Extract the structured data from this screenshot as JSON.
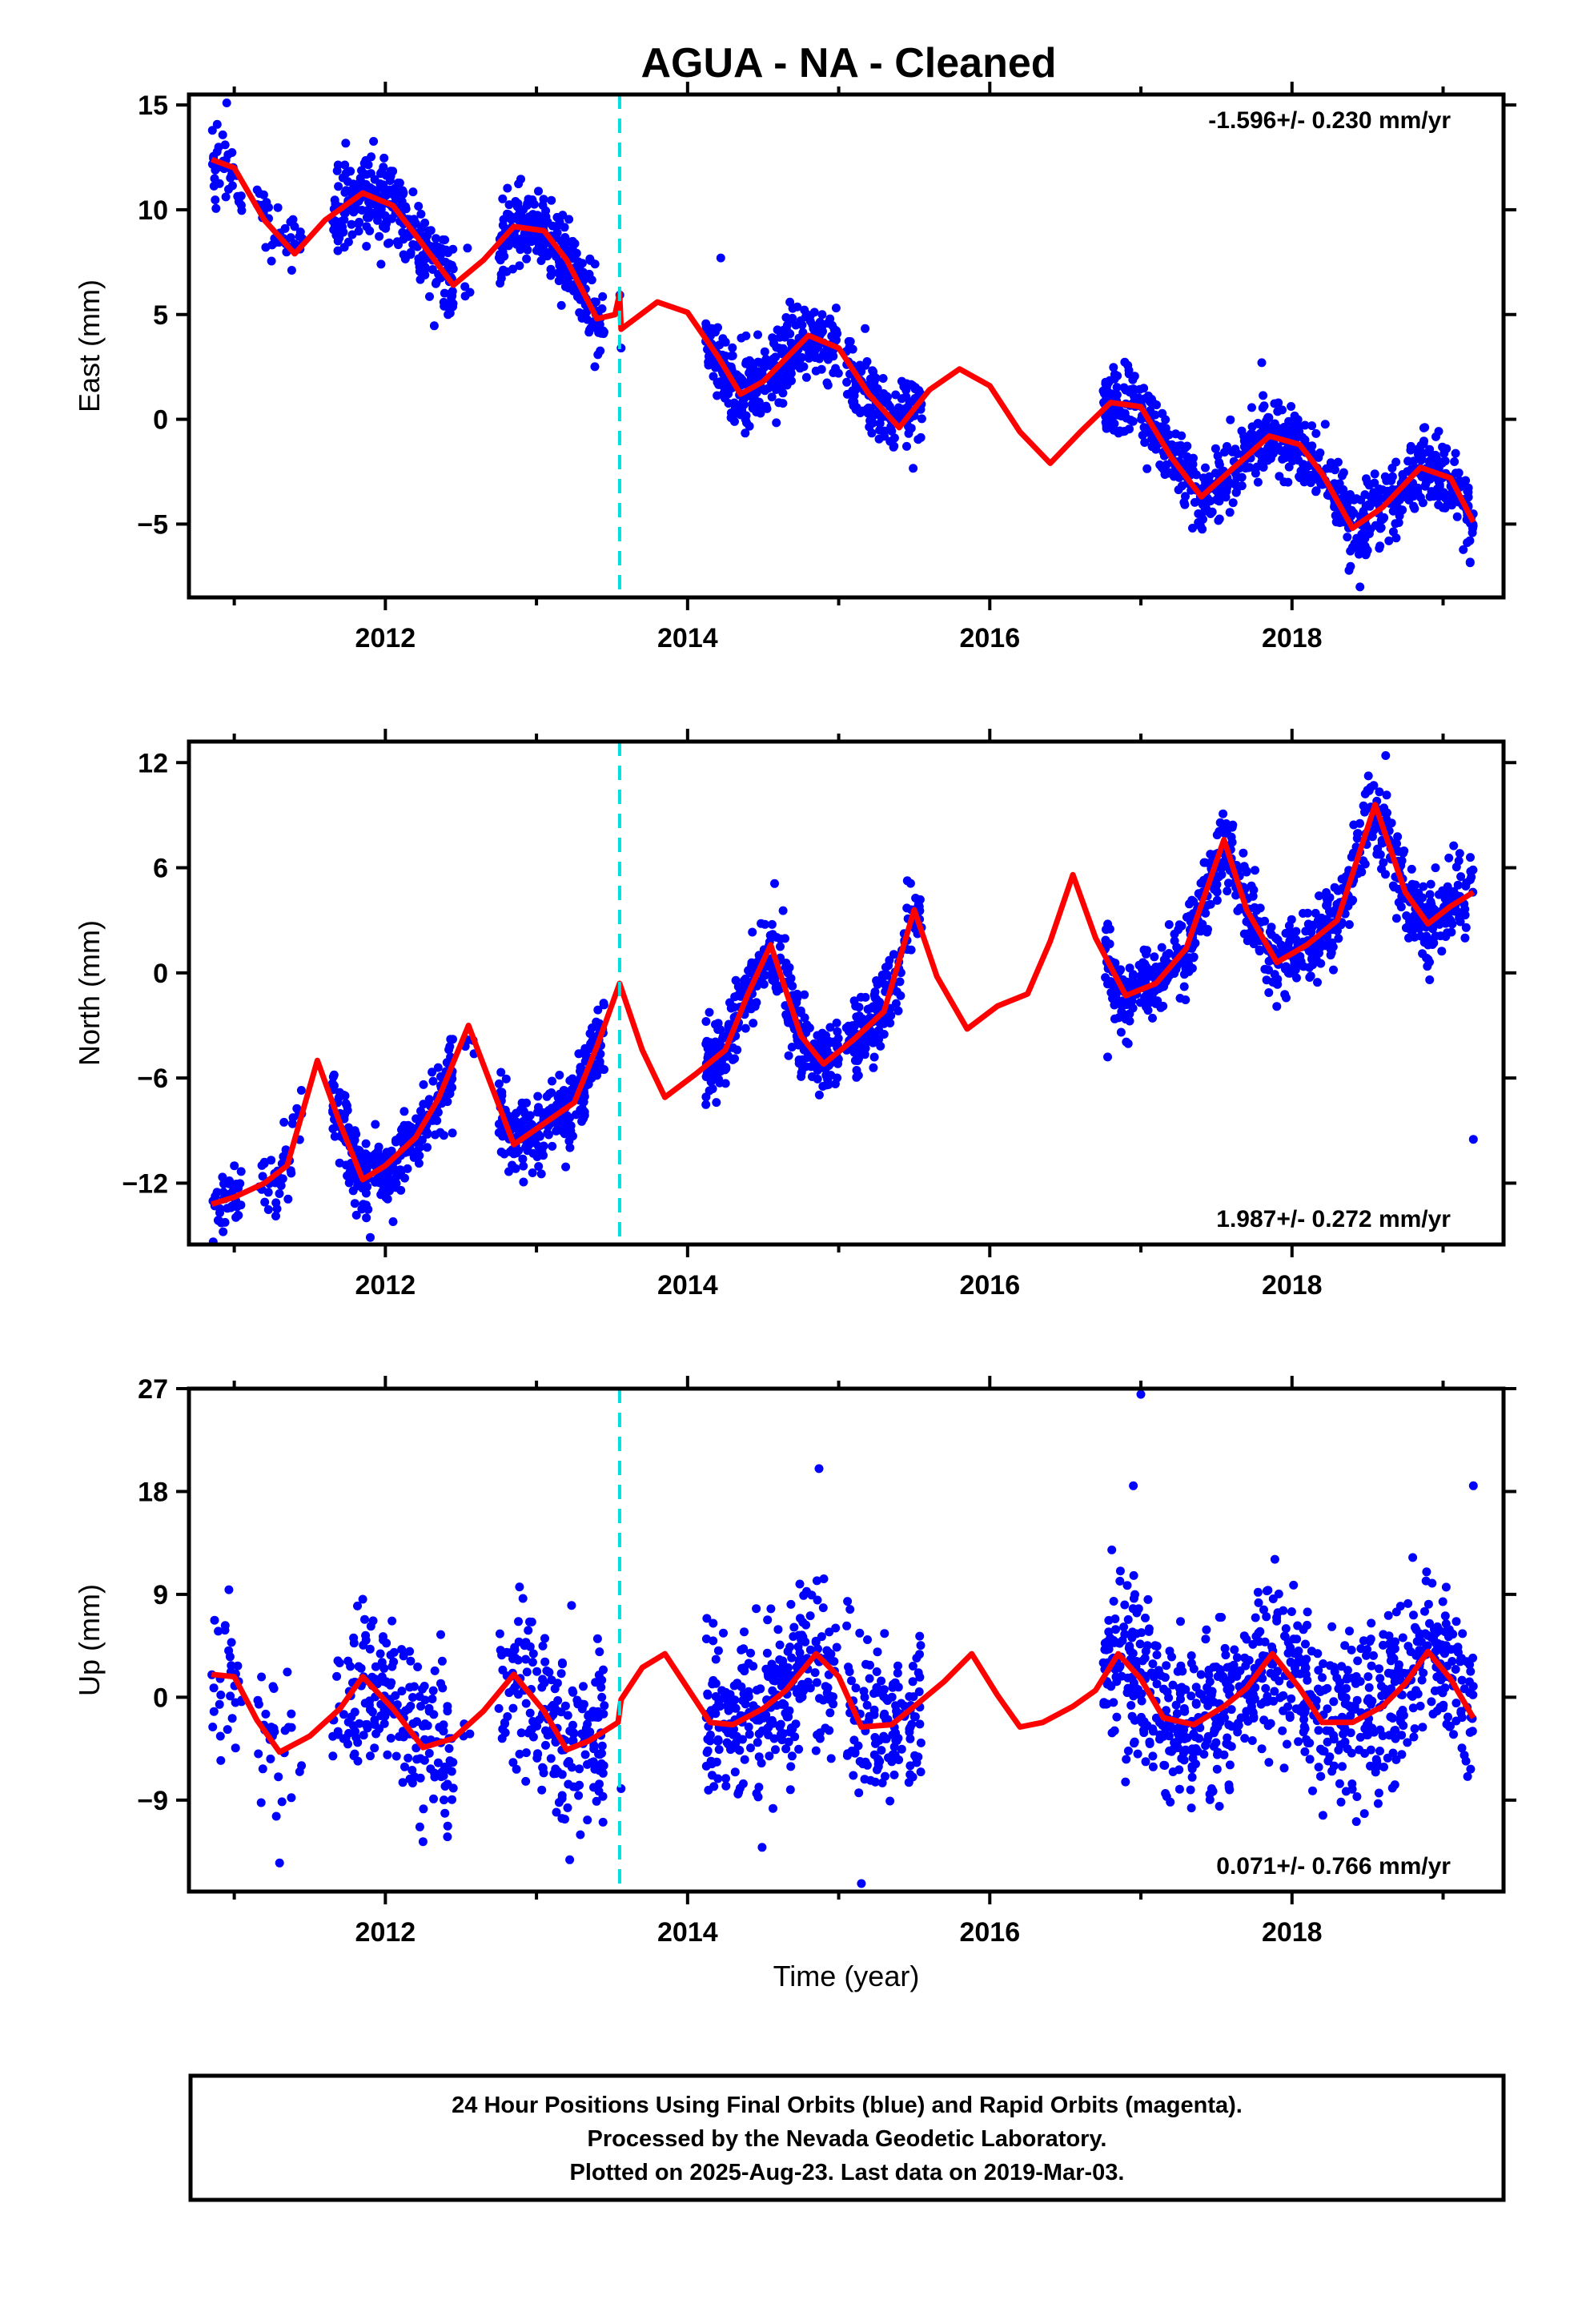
{
  "title": "AGUA  - NA - Cleaned",
  "colors": {
    "points": "#0000ff",
    "model": "#ff0000",
    "break_line": "#00dede",
    "frame": "#000000"
  },
  "footer": {
    "lines": [
      "24 Hour Positions Using Final Orbits (blue) and Rapid Orbits (magenta).",
      "Processed by the Nevada Geodetic Laboratory.",
      "Plotted on 2025-Aug-23. Last data on 2019-Mar-03."
    ]
  },
  "chart_data": [
    {
      "type": "scatter",
      "component": "East",
      "ylabel": "East (mm)",
      "xlabel": "",
      "xlim": [
        2010.7,
        2019.4
      ],
      "ylim": [
        -8.5,
        15.5
      ],
      "yticks": [
        -5,
        0,
        5,
        10,
        15
      ],
      "xticks": [
        2012,
        2014,
        2016,
        2018
      ],
      "rate_text": "-1.596+/- 0.230 mm/yr",
      "rate_position": "top-right",
      "break_x": 2013.55,
      "model_line": {
        "trend_mm_per_yr": -1.596,
        "offset_at_break_mm": -1.7,
        "points": [
          [
            2010.85,
            12.4
          ],
          [
            2011.0,
            12.0
          ],
          [
            2011.2,
            9.5
          ],
          [
            2011.4,
            7.9
          ],
          [
            2011.6,
            9.5
          ],
          [
            2011.85,
            10.8
          ],
          [
            2012.05,
            10.2
          ],
          [
            2012.2,
            8.8
          ],
          [
            2012.45,
            6.4
          ],
          [
            2012.65,
            7.6
          ],
          [
            2012.85,
            9.2
          ],
          [
            2013.05,
            9.0
          ],
          [
            2013.2,
            7.6
          ],
          [
            2013.4,
            4.8
          ],
          [
            2013.52,
            5.0
          ],
          [
            2013.55,
            6.0
          ],
          [
            2013.56,
            4.3
          ],
          [
            2013.8,
            5.6
          ],
          [
            2014.0,
            5.1
          ],
          [
            2014.2,
            3.0
          ],
          [
            2014.35,
            1.2
          ],
          [
            2014.5,
            1.8
          ],
          [
            2014.8,
            4.0
          ],
          [
            2015.0,
            3.4
          ],
          [
            2015.2,
            1.2
          ],
          [
            2015.4,
            -0.4
          ],
          [
            2015.6,
            1.4
          ],
          [
            2015.8,
            2.4
          ],
          [
            2016.0,
            1.6
          ],
          [
            2016.2,
            -0.6
          ],
          [
            2016.4,
            -2.1
          ],
          [
            2016.6,
            -0.6
          ],
          [
            2016.8,
            0.8
          ],
          [
            2017.0,
            0.6
          ],
          [
            2017.2,
            -1.8
          ],
          [
            2017.4,
            -3.7
          ],
          [
            2017.6,
            -2.4
          ],
          [
            2017.85,
            -0.8
          ],
          [
            2018.05,
            -1.2
          ],
          [
            2018.2,
            -2.6
          ],
          [
            2018.4,
            -5.2
          ],
          [
            2018.6,
            -4.2
          ],
          [
            2018.85,
            -2.3
          ],
          [
            2019.05,
            -2.8
          ],
          [
            2019.2,
            -4.9
          ]
        ]
      },
      "observation_segments": [
        {
          "start": 2010.85,
          "end": 2011.05,
          "n": 40
        },
        {
          "start": 2011.15,
          "end": 2011.45,
          "n": 40
        },
        {
          "start": 2011.65,
          "end": 2012.45,
          "n": 280
        },
        {
          "start": 2012.5,
          "end": 2012.6,
          "n": 4
        },
        {
          "start": 2012.75,
          "end": 2013.45,
          "n": 260
        },
        {
          "start": 2013.55,
          "end": 2013.56,
          "n": 1
        },
        {
          "start": 2014.12,
          "end": 2015.0,
          "n": 330
        },
        {
          "start": 2015.05,
          "end": 2015.55,
          "n": 160
        },
        {
          "start": 2016.75,
          "end": 2019.2,
          "n": 800
        }
      ],
      "scatter_sd_mm": 0.9,
      "outliers": [
        [
          2010.95,
          15.1
        ],
        [
          2014.22,
          7.7
        ],
        [
          2013.56,
          3.4
        ],
        [
          2017.8,
          2.7
        ],
        [
          2018.45,
          -8.0
        ]
      ]
    },
    {
      "type": "scatter",
      "component": "North",
      "ylabel": "North (mm)",
      "xlabel": "",
      "xlim": [
        2010.7,
        2019.4
      ],
      "ylim": [
        -15.5,
        13.2
      ],
      "yticks": [
        -12,
        -6,
        0,
        6,
        12
      ],
      "xticks": [
        2012,
        2014,
        2016,
        2018
      ],
      "rate_text": "1.987+/- 0.272 mm/yr",
      "rate_position": "bottom-right",
      "break_x": 2013.55,
      "model_line": {
        "trend_mm_per_yr": 1.987,
        "offset_at_break_mm": 0.0,
        "points": [
          [
            2010.85,
            -13.2
          ],
          [
            2011.0,
            -12.8
          ],
          [
            2011.2,
            -12.0
          ],
          [
            2011.35,
            -11.0
          ],
          [
            2011.55,
            -5.0
          ],
          [
            2011.7,
            -8.6
          ],
          [
            2011.85,
            -11.8
          ],
          [
            2012.0,
            -11.0
          ],
          [
            2012.2,
            -9.4
          ],
          [
            2012.35,
            -7.2
          ],
          [
            2012.55,
            -3.0
          ],
          [
            2012.7,
            -6.4
          ],
          [
            2012.85,
            -9.8
          ],
          [
            2013.05,
            -8.6
          ],
          [
            2013.25,
            -7.4
          ],
          [
            2013.4,
            -4.2
          ],
          [
            2013.55,
            -0.6
          ],
          [
            2013.7,
            -4.4
          ],
          [
            2013.85,
            -7.1
          ],
          [
            2014.05,
            -5.8
          ],
          [
            2014.25,
            -4.4
          ],
          [
            2014.4,
            -1.2
          ],
          [
            2014.55,
            1.6
          ],
          [
            2014.75,
            -3.6
          ],
          [
            2014.9,
            -5.2
          ],
          [
            2015.1,
            -3.8
          ],
          [
            2015.3,
            -2.2
          ],
          [
            2015.5,
            3.6
          ],
          [
            2015.65,
            -0.2
          ],
          [
            2015.85,
            -3.2
          ],
          [
            2016.05,
            -1.9
          ],
          [
            2016.25,
            -1.2
          ],
          [
            2016.4,
            1.8
          ],
          [
            2016.55,
            5.6
          ],
          [
            2016.7,
            2.0
          ],
          [
            2016.9,
            -1.3
          ],
          [
            2017.1,
            -0.6
          ],
          [
            2017.3,
            1.4
          ],
          [
            2017.55,
            7.6
          ],
          [
            2017.7,
            3.6
          ],
          [
            2017.9,
            0.6
          ],
          [
            2018.1,
            1.6
          ],
          [
            2018.3,
            3.0
          ],
          [
            2018.55,
            9.6
          ],
          [
            2018.75,
            4.6
          ],
          [
            2018.9,
            2.8
          ],
          [
            2019.05,
            3.8
          ],
          [
            2019.2,
            4.6
          ]
        ]
      },
      "observation_segments": [
        {
          "start": 2010.85,
          "end": 2011.05,
          "n": 40
        },
        {
          "start": 2011.15,
          "end": 2011.45,
          "n": 40
        },
        {
          "start": 2011.65,
          "end": 2012.45,
          "n": 280
        },
        {
          "start": 2012.5,
          "end": 2012.6,
          "n": 4
        },
        {
          "start": 2012.75,
          "end": 2013.45,
          "n": 260
        },
        {
          "start": 2014.12,
          "end": 2015.0,
          "n": 330
        },
        {
          "start": 2015.05,
          "end": 2015.55,
          "n": 160
        },
        {
          "start": 2016.75,
          "end": 2019.2,
          "n": 800
        }
      ],
      "scatter_sd_mm": 1.1,
      "outliers": [
        [
          2011.9,
          -15.1
        ],
        [
          2016.78,
          -4.8
        ],
        [
          2018.62,
          12.4
        ],
        [
          2019.2,
          -9.5
        ]
      ]
    },
    {
      "type": "scatter",
      "component": "Up",
      "ylabel": "Up (mm)",
      "xlabel": "Time (year)",
      "xlim": [
        2010.7,
        2019.4
      ],
      "ylim": [
        -17,
        27
      ],
      "yticks": [
        -9,
        0,
        9,
        18,
        27
      ],
      "xticks": [
        2012,
        2014,
        2016,
        2018
      ],
      "rate_text": "0.071+/- 0.766 mm/yr",
      "rate_position": "bottom-right",
      "break_x": 2013.55,
      "model_line": {
        "trend_mm_per_yr": 0.071,
        "offset_at_break_mm": 2.0,
        "points": [
          [
            2010.85,
            2.0
          ],
          [
            2011.0,
            1.8
          ],
          [
            2011.15,
            -2.0
          ],
          [
            2011.3,
            -4.8
          ],
          [
            2011.5,
            -3.4
          ],
          [
            2011.7,
            -1.0
          ],
          [
            2011.85,
            1.8
          ],
          [
            2012.05,
            -1.0
          ],
          [
            2012.25,
            -4.4
          ],
          [
            2012.45,
            -3.6
          ],
          [
            2012.65,
            -1.2
          ],
          [
            2012.85,
            2.0
          ],
          [
            2013.05,
            -1.2
          ],
          [
            2013.2,
            -4.6
          ],
          [
            2013.35,
            -3.8
          ],
          [
            2013.54,
            -2.2
          ],
          [
            2013.56,
            -0.2
          ],
          [
            2013.7,
            2.6
          ],
          [
            2013.85,
            3.8
          ],
          [
            2014.0,
            0.8
          ],
          [
            2014.15,
            -2.2
          ],
          [
            2014.3,
            -2.4
          ],
          [
            2014.5,
            -1.0
          ],
          [
            2014.65,
            0.6
          ],
          [
            2014.85,
            3.8
          ],
          [
            2015.0,
            1.8
          ],
          [
            2015.15,
            -2.6
          ],
          [
            2015.35,
            -2.4
          ],
          [
            2015.5,
            -0.8
          ],
          [
            2015.7,
            1.4
          ],
          [
            2015.88,
            3.8
          ],
          [
            2016.05,
            0.2
          ],
          [
            2016.2,
            -2.6
          ],
          [
            2016.35,
            -2.2
          ],
          [
            2016.55,
            -0.8
          ],
          [
            2016.7,
            0.6
          ],
          [
            2016.85,
            3.8
          ],
          [
            2017.0,
            1.6
          ],
          [
            2017.15,
            -1.8
          ],
          [
            2017.35,
            -2.4
          ],
          [
            2017.55,
            -0.8
          ],
          [
            2017.7,
            0.8
          ],
          [
            2017.87,
            3.8
          ],
          [
            2018.05,
            0.8
          ],
          [
            2018.2,
            -2.2
          ],
          [
            2018.4,
            -2.2
          ],
          [
            2018.6,
            -0.8
          ],
          [
            2018.75,
            1.2
          ],
          [
            2018.9,
            4.0
          ],
          [
            2019.05,
            1.6
          ],
          [
            2019.2,
            -1.8
          ]
        ]
      },
      "observation_segments": [
        {
          "start": 2010.85,
          "end": 2011.05,
          "n": 30
        },
        {
          "start": 2011.15,
          "end": 2011.45,
          "n": 30
        },
        {
          "start": 2011.65,
          "end": 2012.45,
          "n": 200
        },
        {
          "start": 2012.5,
          "end": 2012.6,
          "n": 3
        },
        {
          "start": 2012.75,
          "end": 2013.45,
          "n": 200
        },
        {
          "start": 2014.12,
          "end": 2015.0,
          "n": 300
        },
        {
          "start": 2015.05,
          "end": 2015.55,
          "n": 140
        },
        {
          "start": 2016.75,
          "end": 2019.2,
          "n": 800
        }
      ],
      "scatter_sd_mm": 3.6,
      "outliers": [
        [
          2014.87,
          20.0
        ],
        [
          2017.0,
          26.5
        ],
        [
          2016.95,
          18.5
        ],
        [
          2019.2,
          18.5
        ],
        [
          2015.15,
          -16.3
        ],
        [
          2011.3,
          -14.5
        ],
        [
          2013.56,
          -8.0
        ]
      ]
    }
  ]
}
